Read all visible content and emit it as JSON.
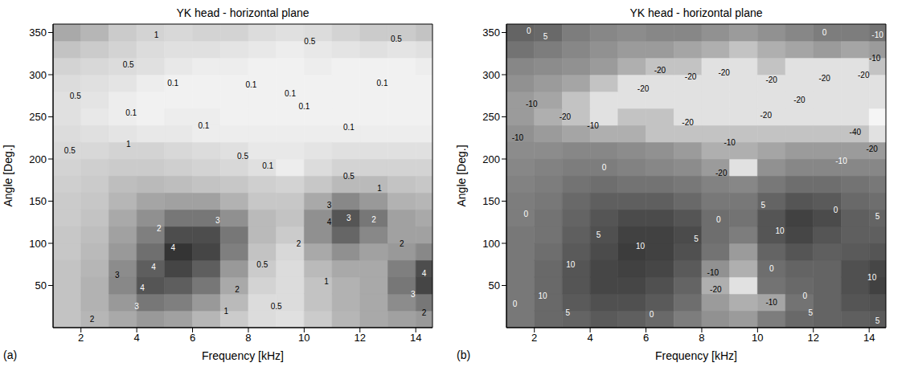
{
  "chart_data": [
    {
      "type": "heatmap",
      "title": "YK head - horizontal plane",
      "panel_label": "(a)",
      "x_label": "Frequency [kHz]",
      "y_label": "Angle [Deg.]",
      "xlim": [
        1,
        14.6
      ],
      "xticks": [
        2,
        4,
        6,
        8,
        10,
        12,
        14
      ],
      "ylim": [
        0,
        360
      ],
      "yticks": [
        50,
        100,
        150,
        200,
        250,
        300,
        350
      ],
      "x": [
        1.5,
        2.5,
        3.5,
        4.5,
        5.5,
        6.5,
        7.5,
        8.5,
        9.5,
        10.5,
        11.5,
        12.5,
        13.5,
        14.5
      ],
      "y": [
        10,
        30,
        50,
        70,
        90,
        110,
        130,
        150,
        170,
        190,
        210,
        230,
        250,
        270,
        290,
        310,
        330,
        350
      ],
      "color_range": [
        0,
        5
      ],
      "cells": [
        [
          1.2,
          1.5,
          1.8,
          2.2,
          2.0,
          1.5,
          1.0,
          0.6,
          0.5,
          1.0,
          1.5,
          1.8,
          2.0,
          2.2
        ],
        [
          1.2,
          1.6,
          2.2,
          3.0,
          2.8,
          2.2,
          1.4,
          0.6,
          0.6,
          1.2,
          1.6,
          1.8,
          2.5,
          3.0
        ],
        [
          1.2,
          1.6,
          2.6,
          3.8,
          3.6,
          3.0,
          1.8,
          0.8,
          0.6,
          1.2,
          1.6,
          1.8,
          3.0,
          4.2
        ],
        [
          1.2,
          1.5,
          2.5,
          3.6,
          4.2,
          3.6,
          2.2,
          1.0,
          0.6,
          1.4,
          1.8,
          1.8,
          2.8,
          4.0
        ],
        [
          1.1,
          1.4,
          2.2,
          3.2,
          4.6,
          4.2,
          2.8,
          1.2,
          0.7,
          1.8,
          2.4,
          2.0,
          2.2,
          2.6
        ],
        [
          1.1,
          1.3,
          2.0,
          2.8,
          4.0,
          4.0,
          3.0,
          1.4,
          1.0,
          2.4,
          3.4,
          2.6,
          2.0,
          2.0
        ],
        [
          1.0,
          1.2,
          1.8,
          2.4,
          3.0,
          3.0,
          2.4,
          1.4,
          1.2,
          2.4,
          3.8,
          3.0,
          2.0,
          1.8
        ],
        [
          1.0,
          1.1,
          1.5,
          1.9,
          2.0,
          2.0,
          1.6,
          1.1,
          1.1,
          1.8,
          2.6,
          2.2,
          1.6,
          1.5
        ],
        [
          0.9,
          1.0,
          1.3,
          1.4,
          1.3,
          1.2,
          1.1,
          0.9,
          0.8,
          1.1,
          1.4,
          1.4,
          1.2,
          1.1
        ],
        [
          0.8,
          0.9,
          1.0,
          1.0,
          0.9,
          0.8,
          0.7,
          0.5,
          0.2,
          0.6,
          0.8,
          0.8,
          0.8,
          0.8
        ],
        [
          0.7,
          0.7,
          0.8,
          0.8,
          0.7,
          0.6,
          0.5,
          0.3,
          0.3,
          0.4,
          0.5,
          0.5,
          0.5,
          0.5
        ],
        [
          0.6,
          0.5,
          0.4,
          0.3,
          0.3,
          0.2,
          0.2,
          0.2,
          0.2,
          0.2,
          0.2,
          0.2,
          0.2,
          0.2
        ],
        [
          0.5,
          0.3,
          0.2,
          0.1,
          0.2,
          0.2,
          0.1,
          0.1,
          0.1,
          0.1,
          0.1,
          0.1,
          0.1,
          0.1
        ],
        [
          0.5,
          0.4,
          0.2,
          0.1,
          0.1,
          0.1,
          0.1,
          0.1,
          0.1,
          0.1,
          0.1,
          0.1,
          0.1,
          0.1
        ],
        [
          0.6,
          0.5,
          0.4,
          0.2,
          0.1,
          0.1,
          0.1,
          0.1,
          0.1,
          0.1,
          0.1,
          0.1,
          0.1,
          0.1
        ],
        [
          0.8,
          0.7,
          0.6,
          0.5,
          0.3,
          0.2,
          0.2,
          0.1,
          0.1,
          0.2,
          0.1,
          0.1,
          0.1,
          0.2
        ],
        [
          1.2,
          1.0,
          0.8,
          0.6,
          0.5,
          0.5,
          0.4,
          0.3,
          0.2,
          0.3,
          0.4,
          0.5,
          0.4,
          0.5
        ],
        [
          1.8,
          1.5,
          1.0,
          0.8,
          0.7,
          0.8,
          0.8,
          0.6,
          0.5,
          0.6,
          0.8,
          1.0,
          1.0,
          1.2
        ]
      ],
      "labels": [
        {
          "x": 4.7,
          "y": 347,
          "label": "1"
        },
        {
          "x": 3.7,
          "y": 312,
          "label": "0.5"
        },
        {
          "x": 10.2,
          "y": 340,
          "label": "0.5"
        },
        {
          "x": 13.3,
          "y": 342,
          "label": "0.5"
        },
        {
          "x": 5.3,
          "y": 290,
          "label": "0.1"
        },
        {
          "x": 8.1,
          "y": 288,
          "label": "0.1"
        },
        {
          "x": 9.5,
          "y": 278,
          "label": "0.1"
        },
        {
          "x": 12.8,
          "y": 290,
          "label": "0.1"
        },
        {
          "x": 1.8,
          "y": 275,
          "label": "0.5"
        },
        {
          "x": 10.0,
          "y": 262,
          "label": "0.1"
        },
        {
          "x": 3.8,
          "y": 255,
          "label": "0.1"
        },
        {
          "x": 6.4,
          "y": 240,
          "label": "0.1"
        },
        {
          "x": 11.6,
          "y": 238,
          "label": "0.1"
        },
        {
          "x": 1.6,
          "y": 210,
          "label": "0.5"
        },
        {
          "x": 3.7,
          "y": 218,
          "label": "1"
        },
        {
          "x": 7.8,
          "y": 203,
          "label": "0.5"
        },
        {
          "x": 8.7,
          "y": 192,
          "label": "0.1"
        },
        {
          "x": 11.6,
          "y": 180,
          "label": "0.5"
        },
        {
          "x": 12.7,
          "y": 165,
          "label": "1"
        },
        {
          "x": 4.8,
          "y": 118,
          "label": "2"
        },
        {
          "x": 5.3,
          "y": 95,
          "label": "4"
        },
        {
          "x": 4.6,
          "y": 72,
          "label": "4"
        },
        {
          "x": 3.3,
          "y": 62,
          "label": "3"
        },
        {
          "x": 4.2,
          "y": 47,
          "label": "4"
        },
        {
          "x": 4.0,
          "y": 25,
          "label": "3"
        },
        {
          "x": 2.4,
          "y": 10,
          "label": "2"
        },
        {
          "x": 6.9,
          "y": 127,
          "label": "3"
        },
        {
          "x": 7.6,
          "y": 45,
          "label": "2"
        },
        {
          "x": 7.2,
          "y": 20,
          "label": "1"
        },
        {
          "x": 8.5,
          "y": 75,
          "label": "0.5"
        },
        {
          "x": 9.0,
          "y": 25,
          "label": "0.5"
        },
        {
          "x": 10.9,
          "y": 125,
          "label": "4"
        },
        {
          "x": 10.9,
          "y": 145,
          "label": "3"
        },
        {
          "x": 11.6,
          "y": 130,
          "label": "3"
        },
        {
          "x": 9.8,
          "y": 100,
          "label": "2"
        },
        {
          "x": 10.8,
          "y": 55,
          "label": "1"
        },
        {
          "x": 12.5,
          "y": 128,
          "label": "2"
        },
        {
          "x": 14.3,
          "y": 64,
          "label": "4"
        },
        {
          "x": 13.9,
          "y": 40,
          "label": "3"
        },
        {
          "x": 14.3,
          "y": 18,
          "label": "2"
        },
        {
          "x": 13.5,
          "y": 100,
          "label": "2"
        }
      ]
    },
    {
      "type": "heatmap",
      "title": "YK head - horizontal plane",
      "panel_label": "(b)",
      "x_label": "Frequency [kHz]",
      "y_label": "Angle [Deg.]",
      "xlim": [
        1,
        14.6
      ],
      "xticks": [
        2,
        4,
        6,
        8,
        10,
        12,
        14
      ],
      "ylim": [
        0,
        360
      ],
      "yticks": [
        50,
        100,
        150,
        200,
        250,
        300,
        350
      ],
      "x": [
        1.5,
        2.5,
        3.5,
        4.5,
        5.5,
        6.5,
        7.5,
        8.5,
        9.5,
        10.5,
        11.5,
        12.5,
        13.5,
        14.5
      ],
      "y": [
        10,
        30,
        50,
        70,
        90,
        110,
        130,
        150,
        170,
        190,
        210,
        230,
        250,
        270,
        290,
        310,
        330,
        350
      ],
      "color_range": [
        -24,
        18
      ],
      "cells": [
        [
          1,
          4,
          5,
          7,
          6,
          4,
          0,
          -4,
          -6,
          0,
          4,
          5,
          6,
          7
        ],
        [
          1,
          4,
          7,
          9,
          9,
          7,
          3,
          -6,
          -10,
          -8,
          2,
          5,
          8,
          9
        ],
        [
          1,
          4,
          8,
          11,
          11,
          9,
          5,
          -10,
          -20,
          2,
          4,
          5,
          9,
          12
        ],
        [
          1,
          4,
          8,
          11,
          12,
          11,
          7,
          -4,
          -10,
          3,
          5,
          5,
          9,
          11
        ],
        [
          1,
          3,
          7,
          10,
          13,
          12,
          9,
          2,
          -6,
          5,
          8,
          6,
          7,
          8
        ],
        [
          1,
          2,
          6,
          9,
          12,
          12,
          10,
          3,
          0,
          8,
          11,
          8,
          6,
          6
        ],
        [
          0,
          2,
          5,
          8,
          10,
          10,
          8,
          3,
          2,
          8,
          12,
          10,
          6,
          5
        ],
        [
          0,
          1,
          4,
          6,
          6,
          6,
          4,
          1,
          1,
          5,
          8,
          7,
          4,
          3
        ],
        [
          -1,
          0,
          2,
          3,
          2,
          2,
          1,
          -1,
          -2,
          1,
          3,
          3,
          2,
          1
        ],
        [
          -2,
          -1,
          0,
          0,
          -1,
          -2,
          -3,
          -6,
          -20,
          -4,
          -2,
          -2,
          -2,
          -2
        ],
        [
          -3,
          -3,
          -2,
          -2,
          -3,
          -4,
          -6,
          -10,
          -10,
          -8,
          -6,
          -6,
          -6,
          -6
        ],
        [
          -4,
          -6,
          -8,
          -10,
          -10,
          -14,
          -14,
          -14,
          -14,
          -14,
          -14,
          -14,
          -14,
          -20
        ],
        [
          -6,
          -10,
          -14,
          -20,
          -14,
          -14,
          -20,
          -20,
          -20,
          -20,
          -20,
          -20,
          -20,
          -40
        ],
        [
          -6,
          -8,
          -14,
          -20,
          -20,
          -20,
          -20,
          -20,
          -20,
          -20,
          -20,
          -20,
          -20,
          -20
        ],
        [
          -4,
          -6,
          -8,
          -14,
          -20,
          -20,
          -20,
          -20,
          -20,
          -20,
          -20,
          -20,
          -20,
          -20
        ],
        [
          -2,
          -3,
          -4,
          -6,
          -10,
          -14,
          -14,
          -20,
          -20,
          -14,
          -20,
          -20,
          -20,
          -14
        ],
        [
          2,
          0,
          -2,
          -4,
          -6,
          -6,
          -8,
          -10,
          -14,
          -10,
          -8,
          -6,
          -8,
          -6
        ],
        [
          5,
          4,
          0,
          -2,
          -3,
          -2,
          -2,
          -4,
          -6,
          -4,
          -2,
          0,
          0,
          2
        ]
      ],
      "labels": [
        {
          "x": 1.8,
          "y": 352,
          "label": "0"
        },
        {
          "x": 2.4,
          "y": 345,
          "label": "5"
        },
        {
          "x": 12.4,
          "y": 350,
          "label": "0"
        },
        {
          "x": 14.3,
          "y": 347,
          "label": "-10"
        },
        {
          "x": 14.2,
          "y": 320,
          "label": "-10"
        },
        {
          "x": 6.5,
          "y": 305,
          "label": "-20"
        },
        {
          "x": 7.6,
          "y": 298,
          "label": "-20"
        },
        {
          "x": 8.8,
          "y": 302,
          "label": "-20"
        },
        {
          "x": 10.5,
          "y": 294,
          "label": "-20"
        },
        {
          "x": 12.4,
          "y": 296,
          "label": "-20"
        },
        {
          "x": 13.8,
          "y": 300,
          "label": "-20"
        },
        {
          "x": 5.9,
          "y": 283,
          "label": "-20"
        },
        {
          "x": 11.5,
          "y": 270,
          "label": "-20"
        },
        {
          "x": 10.3,
          "y": 252,
          "label": "-20"
        },
        {
          "x": 1.9,
          "y": 265,
          "label": "-10"
        },
        {
          "x": 3.1,
          "y": 250,
          "label": "-20"
        },
        {
          "x": 4.1,
          "y": 240,
          "label": "-10"
        },
        {
          "x": 7.5,
          "y": 243,
          "label": "-20"
        },
        {
          "x": 13.5,
          "y": 232,
          "label": "-40"
        },
        {
          "x": 14.1,
          "y": 212,
          "label": "-20"
        },
        {
          "x": 1.4,
          "y": 225,
          "label": "-10"
        },
        {
          "x": 9.0,
          "y": 220,
          "label": "-10"
        },
        {
          "x": 13.0,
          "y": 198,
          "label": "-10"
        },
        {
          "x": 8.7,
          "y": 183,
          "label": "-20"
        },
        {
          "x": 4.5,
          "y": 190,
          "label": "0"
        },
        {
          "x": 1.7,
          "y": 135,
          "label": "0"
        },
        {
          "x": 4.3,
          "y": 110,
          "label": "5"
        },
        {
          "x": 3.3,
          "y": 75,
          "label": "10"
        },
        {
          "x": 5.8,
          "y": 97,
          "label": "10"
        },
        {
          "x": 7.8,
          "y": 105,
          "label": "5"
        },
        {
          "x": 8.6,
          "y": 128,
          "label": "0"
        },
        {
          "x": 8.4,
          "y": 65,
          "label": "-10"
        },
        {
          "x": 8.5,
          "y": 45,
          "label": "-20"
        },
        {
          "x": 10.2,
          "y": 145,
          "label": "5"
        },
        {
          "x": 10.8,
          "y": 115,
          "label": "10"
        },
        {
          "x": 12.8,
          "y": 140,
          "label": "0"
        },
        {
          "x": 14.3,
          "y": 132,
          "label": "5"
        },
        {
          "x": 10.5,
          "y": 70,
          "label": "0"
        },
        {
          "x": 11.7,
          "y": 38,
          "label": "0"
        },
        {
          "x": 10.5,
          "y": 30,
          "label": "-10"
        },
        {
          "x": 11.9,
          "y": 18,
          "label": "5"
        },
        {
          "x": 14.1,
          "y": 60,
          "label": "10"
        },
        {
          "x": 14.3,
          "y": 8,
          "label": "5"
        },
        {
          "x": 3.2,
          "y": 18,
          "label": "5"
        },
        {
          "x": 2.3,
          "y": 38,
          "label": "10"
        },
        {
          "x": 1.3,
          "y": 28,
          "label": "0"
        },
        {
          "x": 6.2,
          "y": 16,
          "label": "0"
        }
      ]
    }
  ]
}
